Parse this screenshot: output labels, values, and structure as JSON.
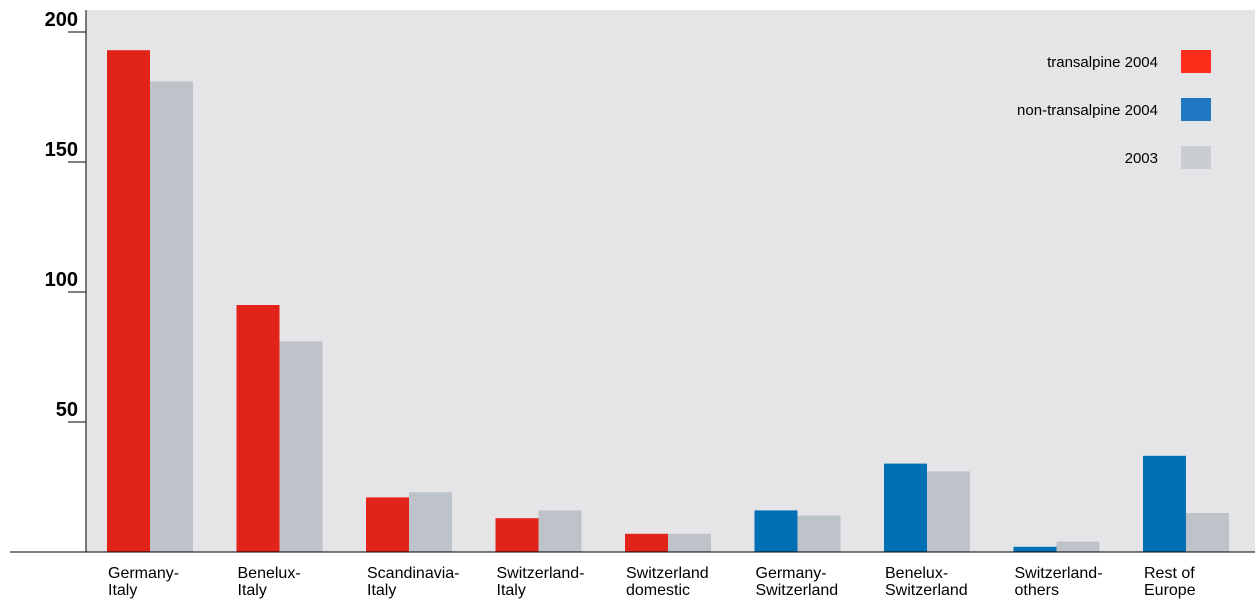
{
  "chart_data": {
    "type": "bar",
    "title": "",
    "xlabel": "",
    "ylabel": "",
    "ylim": [
      0,
      205
    ],
    "yticks": [
      50,
      100,
      150,
      200
    ],
    "grid": false,
    "legend_position": "top-right",
    "categories": [
      [
        "Germany-",
        "Italy"
      ],
      [
        "Benelux-",
        "Italy"
      ],
      [
        "Scandinavia-",
        "Italy"
      ],
      [
        "Switzerland-",
        "Italy"
      ],
      [
        "Switzerland",
        "domestic"
      ],
      [
        "Germany-",
        "Switzerland"
      ],
      [
        "Benelux-",
        "Switzerland"
      ],
      [
        "Switzerland-",
        "others"
      ],
      [
        "Rest of",
        "Europe"
      ]
    ],
    "series": [
      {
        "name": "2004",
        "values": [
          193,
          95,
          21,
          13,
          7,
          16,
          34,
          2,
          37
        ],
        "colors": [
          "#e2231a",
          "#e2231a",
          "#e2231a",
          "#e2231a",
          "#e2231a",
          "#0070b4",
          "#0070b4",
          "#0070b4",
          "#0070b4"
        ]
      },
      {
        "name": "2003",
        "values": [
          181,
          81,
          23,
          16,
          7,
          14,
          31,
          4,
          15
        ],
        "colors": [
          "#bdc3c9",
          "#bdc3c9",
          "#bdc3c9",
          "#bdc3c9",
          "#bdc3c9",
          "#bdc3c9",
          "#bdc3c9",
          "#bdc3c9",
          "#bdc3c9"
        ]
      }
    ],
    "legend": [
      {
        "label": "transalpine 2004",
        "color": "#fb2e1c"
      },
      {
        "label": "non-transalpine 2004",
        "color": "#1f79c2"
      },
      {
        "label": "2003",
        "color": "#c7cdd1"
      }
    ]
  }
}
